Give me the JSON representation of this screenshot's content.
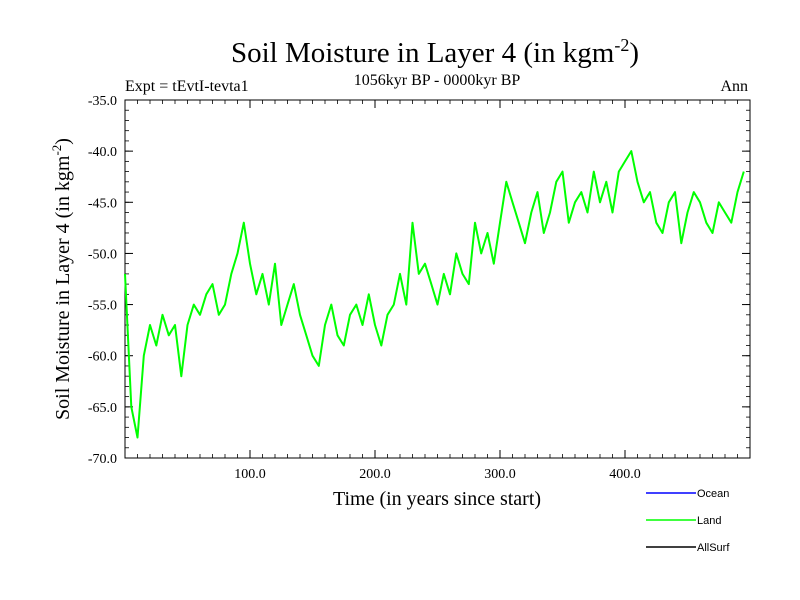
{
  "chart_data": {
    "type": "line",
    "title": {
      "main": "Soil Moisture in Layer 4 (in kgm",
      "sup": "-2",
      "close": ")"
    },
    "subtitle": "1056kyr BP - 0000kyr BP",
    "expt_label": "Expt = tEvtI-tevta1",
    "period_label": "Ann",
    "xlabel": "Time (in years since start)",
    "ylabel": {
      "main": "Soil Moisture in Layer 4 (in kgm",
      "sup": "-2",
      "close": ")"
    },
    "xlim": [
      0,
      500
    ],
    "ylim": [
      -70,
      -35
    ],
    "x_ticks": [
      100,
      200,
      300,
      400
    ],
    "x_tick_labels": [
      "100.0",
      "200.0",
      "300.0",
      "400.0"
    ],
    "y_ticks": [
      -70,
      -65,
      -60,
      -55,
      -50,
      -45,
      -40,
      -35
    ],
    "y_tick_labels": [
      "-70.0",
      "-65.0",
      "-60.0",
      "-55.0",
      "-50.0",
      "-45.0",
      "-40.0",
      "-35.0"
    ],
    "legend": [
      {
        "name": "Ocean",
        "color": "#0000ff"
      },
      {
        "name": "Land",
        "color": "#00ff00"
      },
      {
        "name": "AllSurf",
        "color": "#000000"
      }
    ],
    "series": [
      {
        "name": "Land",
        "color": "#00ff00",
        "x": [
          0,
          5,
          10,
          15,
          20,
          25,
          30,
          35,
          40,
          45,
          50,
          55,
          60,
          65,
          70,
          75,
          80,
          85,
          90,
          95,
          100,
          105,
          110,
          115,
          120,
          125,
          130,
          135,
          140,
          145,
          150,
          155,
          160,
          165,
          170,
          175,
          180,
          185,
          190,
          195,
          200,
          205,
          210,
          215,
          220,
          225,
          230,
          235,
          240,
          245,
          250,
          255,
          260,
          265,
          270,
          275,
          280,
          285,
          290,
          295,
          300,
          305,
          310,
          315,
          320,
          325,
          330,
          335,
          340,
          345,
          350,
          355,
          360,
          365,
          370,
          375,
          380,
          385,
          390,
          395,
          400,
          405,
          410,
          415,
          420,
          425,
          430,
          435,
          440,
          445,
          450,
          455,
          460,
          465,
          470,
          475,
          480,
          485,
          490,
          495
        ],
        "values": [
          -52,
          -65,
          -68,
          -60,
          -57,
          -59,
          -56,
          -58,
          -57,
          -62,
          -57,
          -55,
          -56,
          -54,
          -53,
          -56,
          -55,
          -52,
          -50,
          -47,
          -51,
          -54,
          -52,
          -55,
          -51,
          -57,
          -55,
          -53,
          -56,
          -58,
          -60,
          -61,
          -57,
          -55,
          -58,
          -59,
          -56,
          -55,
          -57,
          -54,
          -57,
          -59,
          -56,
          -55,
          -52,
          -55,
          -47,
          -52,
          -51,
          -53,
          -55,
          -52,
          -54,
          -50,
          -52,
          -53,
          -47,
          -50,
          -48,
          -51,
          -47,
          -43,
          -45,
          -47,
          -49,
          -46,
          -44,
          -48,
          -46,
          -43,
          -42,
          -47,
          -45,
          -44,
          -46,
          -42,
          -45,
          -43,
          -46,
          -42,
          -41,
          -40,
          -43,
          -45,
          -44,
          -47,
          -48,
          -45,
          -44,
          -49,
          -46,
          -44,
          -45,
          -47,
          -48,
          -45,
          -46,
          -47,
          -44,
          -42
        ]
      }
    ]
  }
}
